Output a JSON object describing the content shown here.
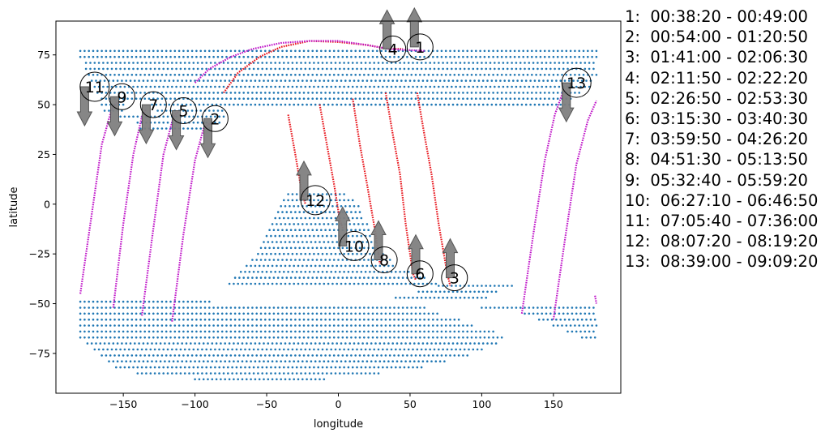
{
  "chart_data": {
    "type": "scatter",
    "xlabel": "longitude",
    "ylabel": "latitude",
    "xlim": [
      -197,
      197
    ],
    "ylim": [
      -95,
      92
    ],
    "xticks": [
      -150,
      -100,
      -50,
      0,
      50,
      100,
      150
    ],
    "yticks": [
      -75,
      -50,
      -25,
      0,
      25,
      50,
      75
    ],
    "grid": false,
    "colors": {
      "land": "#1f77b4",
      "track_red": "#e8141b",
      "track_magenta": "#bf14c8",
      "arrow": "#7f7f7f"
    },
    "land_extents": [
      [
        77,
        -180,
        180
      ],
      [
        74,
        -180,
        180
      ],
      [
        71,
        -176,
        180
      ],
      [
        68,
        -176,
        180
      ],
      [
        65,
        -174,
        180
      ],
      [
        62,
        -172,
        178
      ],
      [
        59,
        -170,
        176
      ],
      [
        56,
        -168,
        170
      ],
      [
        53,
        -165,
        162
      ],
      [
        50,
        -165,
        -150
      ],
      [
        50,
        -130,
        162
      ],
      [
        47,
        -163,
        -150
      ],
      [
        47,
        -126,
        -80
      ],
      [
        44,
        -152,
        -80
      ],
      [
        41,
        -140,
        -82
      ],
      [
        38,
        -138,
        -90
      ],
      [
        5,
        -35,
        5
      ],
      [
        2,
        -38,
        12
      ],
      [
        -1,
        -40,
        15
      ],
      [
        -4,
        -42,
        16
      ],
      [
        -7,
        -44,
        18
      ],
      [
        -10,
        -46,
        20
      ],
      [
        -13,
        -48,
        22
      ],
      [
        -16,
        -50,
        24
      ],
      [
        -19,
        -52,
        26
      ],
      [
        -22,
        -54,
        30
      ],
      [
        -25,
        -56,
        32
      ],
      [
        -28,
        -60,
        36
      ],
      [
        -31,
        -64,
        40
      ],
      [
        -34,
        -68,
        50
      ],
      [
        -37,
        -72,
        60
      ],
      [
        -40,
        -76,
        70
      ],
      [
        -41,
        70,
        122
      ],
      [
        -44,
        56,
        110
      ],
      [
        -47,
        40,
        105
      ],
      [
        -49,
        -180,
        -90
      ],
      [
        -52,
        -180,
        60
      ],
      [
        -52,
        100,
        180
      ],
      [
        -55,
        -180,
        70
      ],
      [
        -55,
        130,
        180
      ],
      [
        -58,
        -180,
        85
      ],
      [
        -58,
        140,
        180
      ],
      [
        -61,
        -180,
        95
      ],
      [
        -61,
        150,
        180
      ],
      [
        -64,
        -180,
        110
      ],
      [
        -64,
        160,
        180
      ],
      [
        -67,
        -180,
        115
      ],
      [
        -67,
        170,
        180
      ],
      [
        -70,
        -175,
        110
      ],
      [
        -73,
        -170,
        100
      ],
      [
        -76,
        -165,
        90
      ],
      [
        -79,
        -160,
        75
      ],
      [
        -82,
        -155,
        60
      ],
      [
        -85,
        -140,
        30
      ],
      [
        -88,
        -100,
        -10
      ]
    ],
    "series": [
      {
        "color": "red",
        "points": [
          [
            -80,
            56
          ],
          [
            -70,
            66
          ],
          [
            -55,
            74
          ],
          [
            -40,
            79
          ],
          [
            -20,
            82
          ],
          [
            0,
            81.5
          ],
          [
            20,
            80
          ],
          [
            35,
            78
          ],
          [
            45,
            78
          ]
        ]
      },
      {
        "color": "magenta",
        "points": [
          [
            -100,
            61
          ],
          [
            -90,
            68
          ],
          [
            -75,
            74
          ],
          [
            -60,
            78
          ],
          [
            -40,
            81
          ],
          [
            -20,
            82
          ],
          [
            0,
            82
          ],
          [
            20,
            80
          ],
          [
            35,
            78
          ],
          [
            60,
            77
          ]
        ]
      },
      {
        "color": "red",
        "points": [
          [
            -35,
            45
          ],
          [
            -30,
            25
          ],
          [
            -26,
            8
          ],
          [
            -23,
            0
          ]
        ]
      },
      {
        "color": "red",
        "points": [
          [
            -13,
            50
          ],
          [
            -8,
            30
          ],
          [
            -3,
            10
          ],
          [
            1,
            -8
          ],
          [
            3,
            -12
          ]
        ]
      },
      {
        "color": "red",
        "points": [
          [
            10,
            53
          ],
          [
            15,
            30
          ],
          [
            20,
            10
          ],
          [
            26,
            -15
          ],
          [
            29,
            -30
          ]
        ]
      },
      {
        "color": "red",
        "points": [
          [
            33,
            56
          ],
          [
            38,
            35
          ],
          [
            43,
            15
          ],
          [
            47,
            -10
          ],
          [
            52,
            -35
          ],
          [
            54,
            -38
          ]
        ]
      },
      {
        "color": "red",
        "points": [
          [
            55,
            56
          ],
          [
            60,
            35
          ],
          [
            65,
            15
          ],
          [
            70,
            -10
          ],
          [
            76,
            -35
          ],
          [
            78,
            -41
          ]
        ]
      },
      {
        "color": "magenta",
        "points": [
          [
            -180,
            -45
          ],
          [
            -172,
            -5
          ],
          [
            -165,
            30
          ],
          [
            -158,
            48
          ],
          [
            -154,
            51
          ]
        ]
      },
      {
        "color": "magenta",
        "points": [
          [
            -157,
            -52
          ],
          [
            -150,
            -10
          ],
          [
            -143,
            25
          ],
          [
            -137,
            44
          ],
          [
            -134,
            48
          ]
        ]
      },
      {
        "color": "magenta",
        "points": [
          [
            -137,
            -56
          ],
          [
            -129,
            -12
          ],
          [
            -122,
            25
          ],
          [
            -115,
            44
          ],
          [
            -111,
            47
          ]
        ]
      },
      {
        "color": "magenta",
        "points": [
          [
            -116,
            -59
          ],
          [
            -108,
            -15
          ],
          [
            -100,
            22
          ],
          [
            -94,
            38
          ],
          [
            -89,
            41
          ]
        ]
      },
      {
        "color": "magenta",
        "points": [
          [
            128,
            -55
          ],
          [
            136,
            -15
          ],
          [
            144,
            22
          ],
          [
            151,
            45
          ],
          [
            157,
            57
          ]
        ]
      },
      {
        "color": "magenta",
        "points": [
          [
            150,
            -58
          ],
          [
            158,
            -18
          ],
          [
            166,
            20
          ],
          [
            174,
            42
          ],
          [
            180,
            52
          ]
        ]
      },
      {
        "color": "magenta",
        "points": [
          [
            179,
            -46
          ],
          [
            180,
            -50
          ]
        ]
      }
    ],
    "annotations": [
      {
        "label": "1",
        "x": 57,
        "y": 79,
        "arrow": "up",
        "ax": 53,
        "ay": 79
      },
      {
        "label": "2",
        "x": -86,
        "y": 43,
        "arrow": "down",
        "ax": -91,
        "ay": 43
      },
      {
        "label": "3",
        "x": 81,
        "y": -37,
        "arrow": "up",
        "ax": 78,
        "ay": -37
      },
      {
        "label": "4",
        "x": 38,
        "y": 78,
        "arrow": "up",
        "ax": 34,
        "ay": 78
      },
      {
        "label": "5",
        "x": -108,
        "y": 47,
        "arrow": "down",
        "ax": -113,
        "ay": 47
      },
      {
        "label": "6",
        "x": 57,
        "y": -35,
        "arrow": "up",
        "ax": 54,
        "ay": -35
      },
      {
        "label": "7",
        "x": -129,
        "y": 50,
        "arrow": "down",
        "ax": -134,
        "ay": 50
      },
      {
        "label": "8",
        "x": 32,
        "y": -28,
        "arrow": "up",
        "ax": 28,
        "ay": -28
      },
      {
        "label": "9",
        "x": -151,
        "y": 54,
        "arrow": "down",
        "ax": -156,
        "ay": 54
      },
      {
        "label": "10",
        "x": 11,
        "y": -21,
        "arrow": "up",
        "ax": 3,
        "ay": -21
      },
      {
        "label": "11",
        "x": -170,
        "y": 59,
        "arrow": "down",
        "ax": -177,
        "ay": 59
      },
      {
        "label": "12",
        "x": -16,
        "y": 2,
        "arrow": "up",
        "ax": -24,
        "ay": 2
      },
      {
        "label": "13",
        "x": 166,
        "y": 61,
        "arrow": "down",
        "ax": 159,
        "ay": 61
      }
    ],
    "legend_placement": "right-outside",
    "legend": [
      "1:  00:38:20 - 00:49:00",
      "2:  00:54:00 - 01:20:50",
      "3:  01:41:00 - 02:06:30",
      "4:  02:11:50 - 02:22:20",
      "5:  02:26:50 - 02:53:30",
      "6:  03:15:30 - 03:40:30",
      "7:  03:59:50 - 04:26:20",
      "8:  04:51:30 - 05:13:50",
      "9:  05:32:40 - 05:59:20",
      "10:  06:27:10 - 06:46:50",
      "11:  07:05:40 - 07:36:00",
      "12:  08:07:20 - 08:19:20",
      "13:  08:39:00 - 09:09:20"
    ]
  }
}
